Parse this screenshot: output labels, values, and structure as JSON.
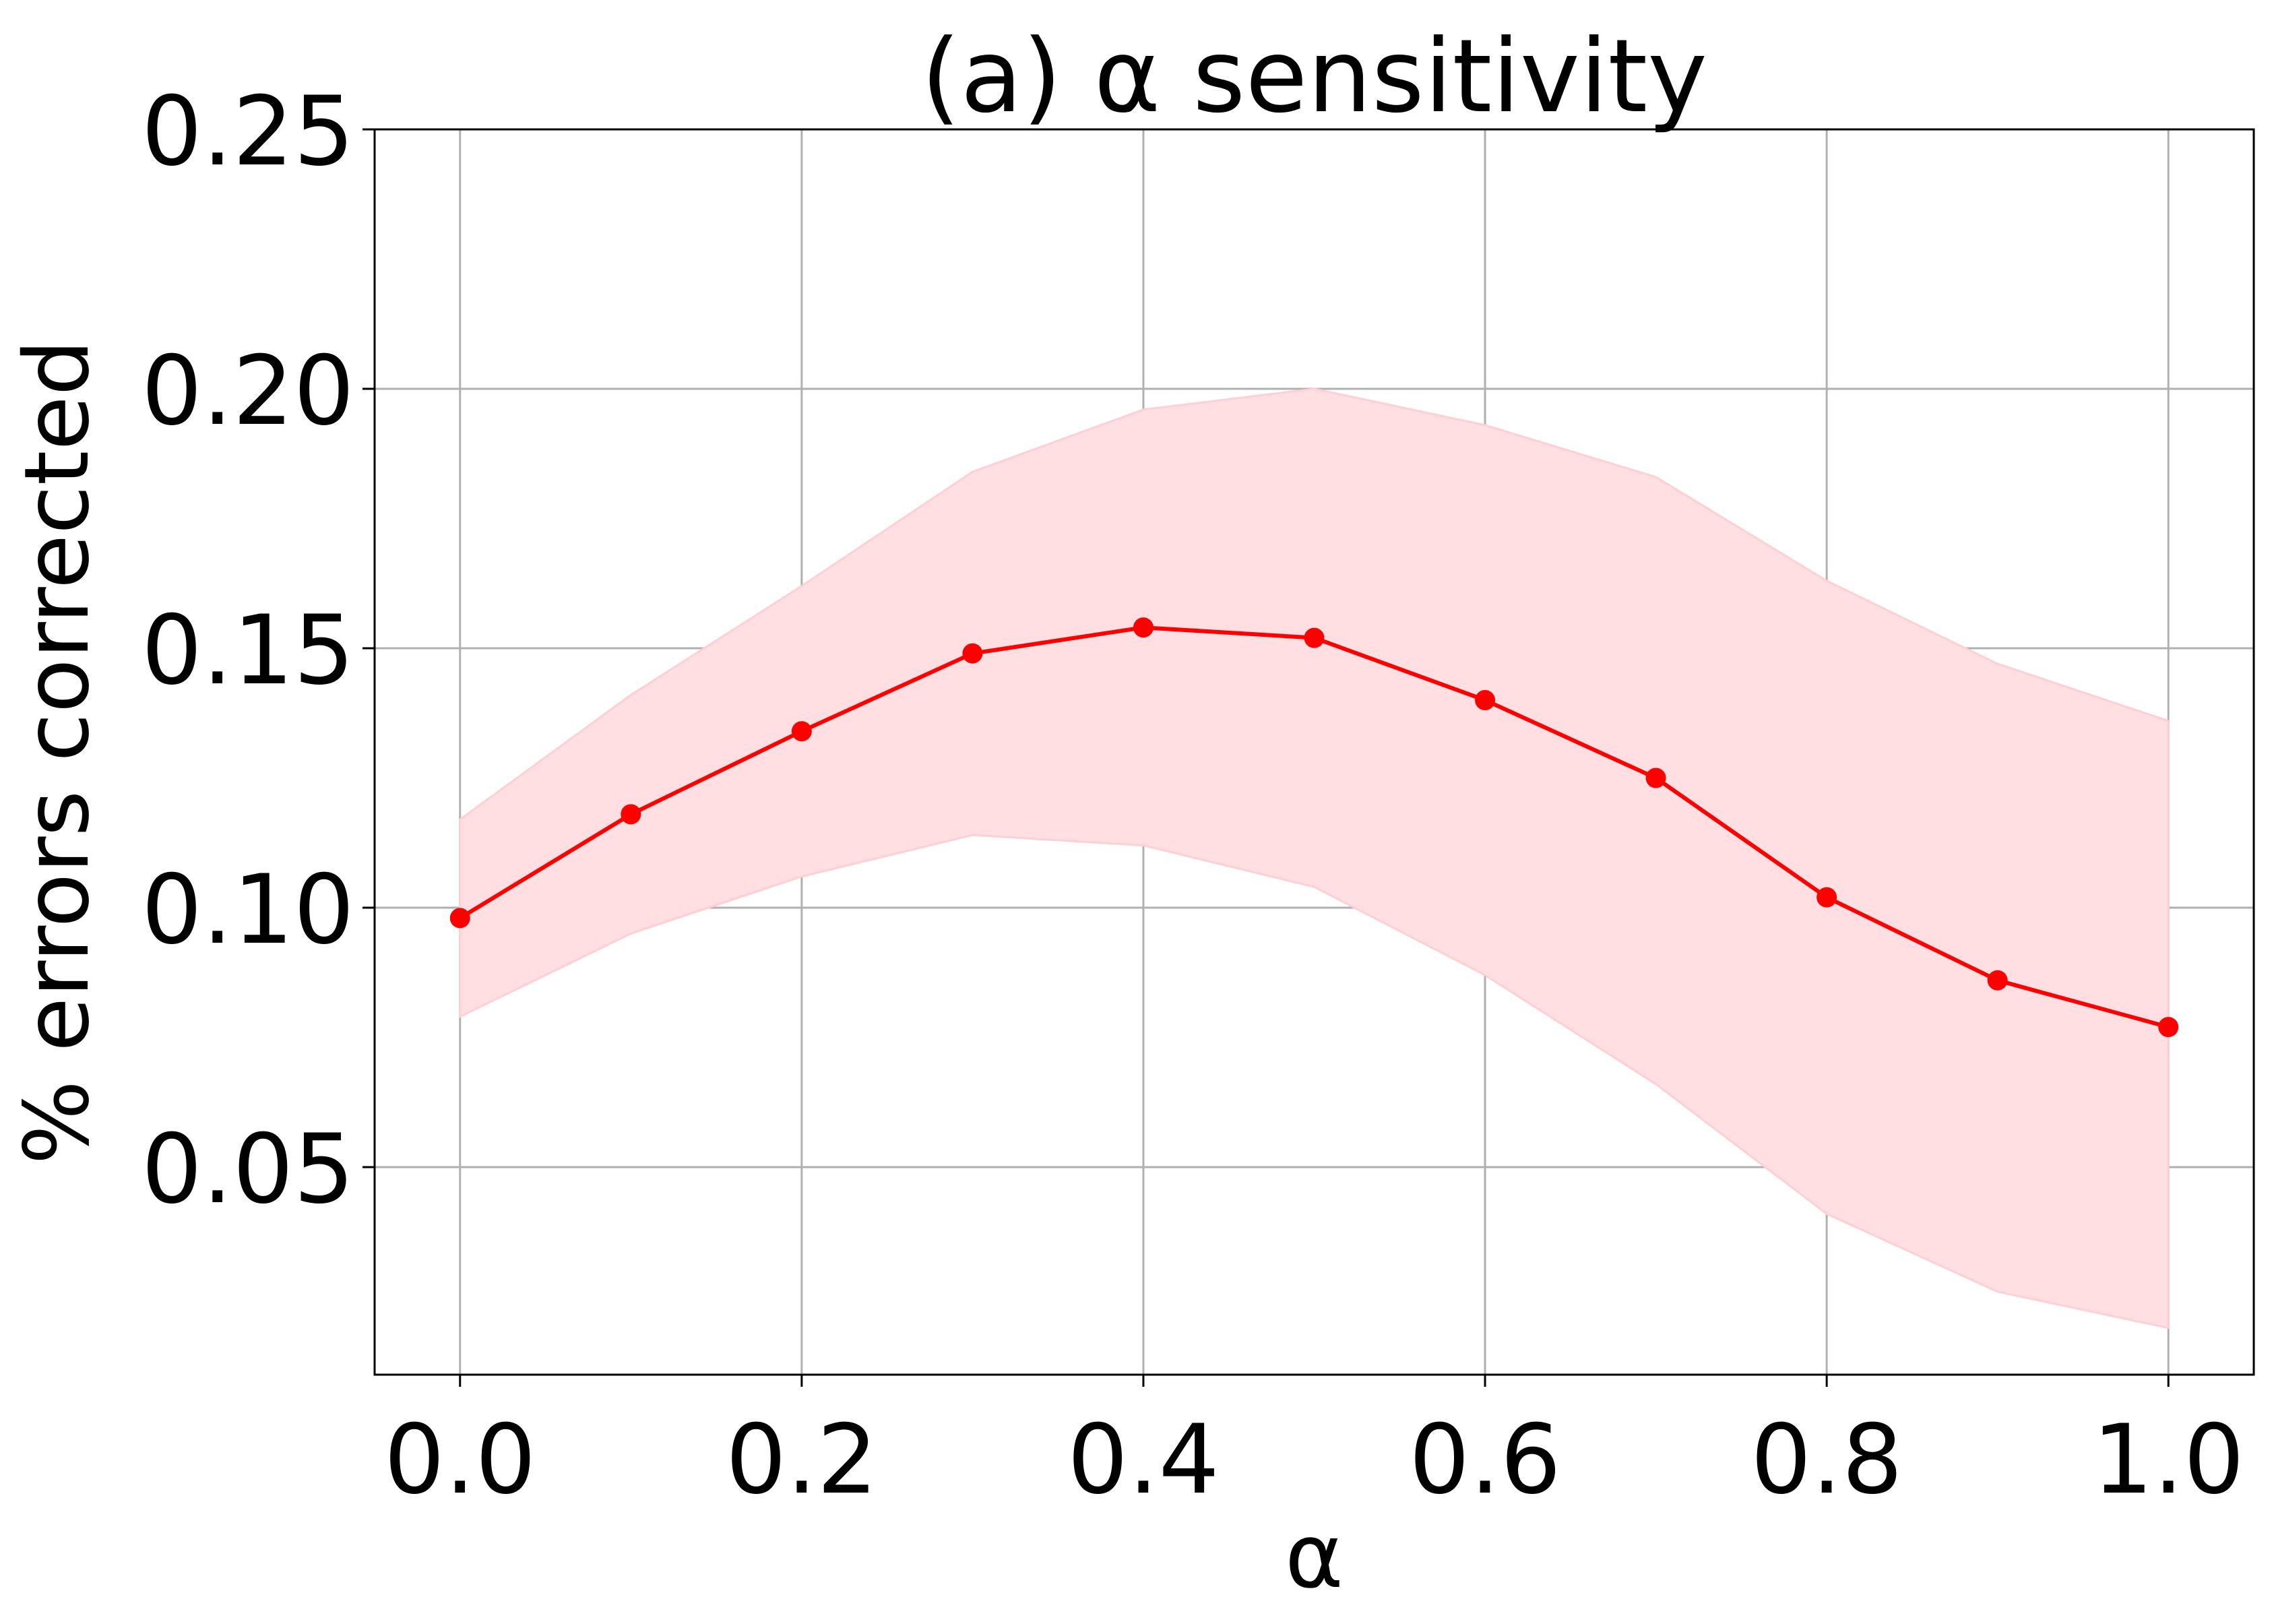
{
  "chart_data": {
    "type": "line",
    "title": "(a) α sensitivity",
    "xlabel": "α",
    "ylabel": "% errors corrected",
    "xlim": [
      -0.05,
      1.05
    ],
    "ylim": [
      0.01,
      0.25
    ],
    "xticks": [
      0.0,
      0.2,
      0.4,
      0.6,
      0.8,
      1.0
    ],
    "xtick_labels": [
      "0.0",
      "0.2",
      "0.4",
      "0.6",
      "0.8",
      "1.0"
    ],
    "yticks": [
      0.05,
      0.1,
      0.15,
      0.2,
      0.25
    ],
    "ytick_labels": [
      "0.05",
      "0.10",
      "0.15",
      "0.20",
      "0.25"
    ],
    "grid": true,
    "legend": "none",
    "series": [
      {
        "color": "#ff0000",
        "band_color": "#ffdfe2",
        "x": [
          0.0,
          0.1,
          0.2,
          0.3,
          0.4,
          0.5,
          0.6,
          0.7,
          0.8,
          0.9,
          1.0
        ],
        "y": [
          0.098,
          0.118,
          0.134,
          0.149,
          0.154,
          0.152,
          0.14,
          0.125,
          0.102,
          0.086,
          0.077
        ],
        "upper": [
          0.117,
          0.141,
          0.162,
          0.184,
          0.196,
          0.2,
          0.193,
          0.183,
          0.163,
          0.147,
          0.136
        ],
        "lower": [
          0.079,
          0.095,
          0.106,
          0.114,
          0.112,
          0.104,
          0.087,
          0.066,
          0.041,
          0.026,
          0.019
        ]
      }
    ]
  }
}
